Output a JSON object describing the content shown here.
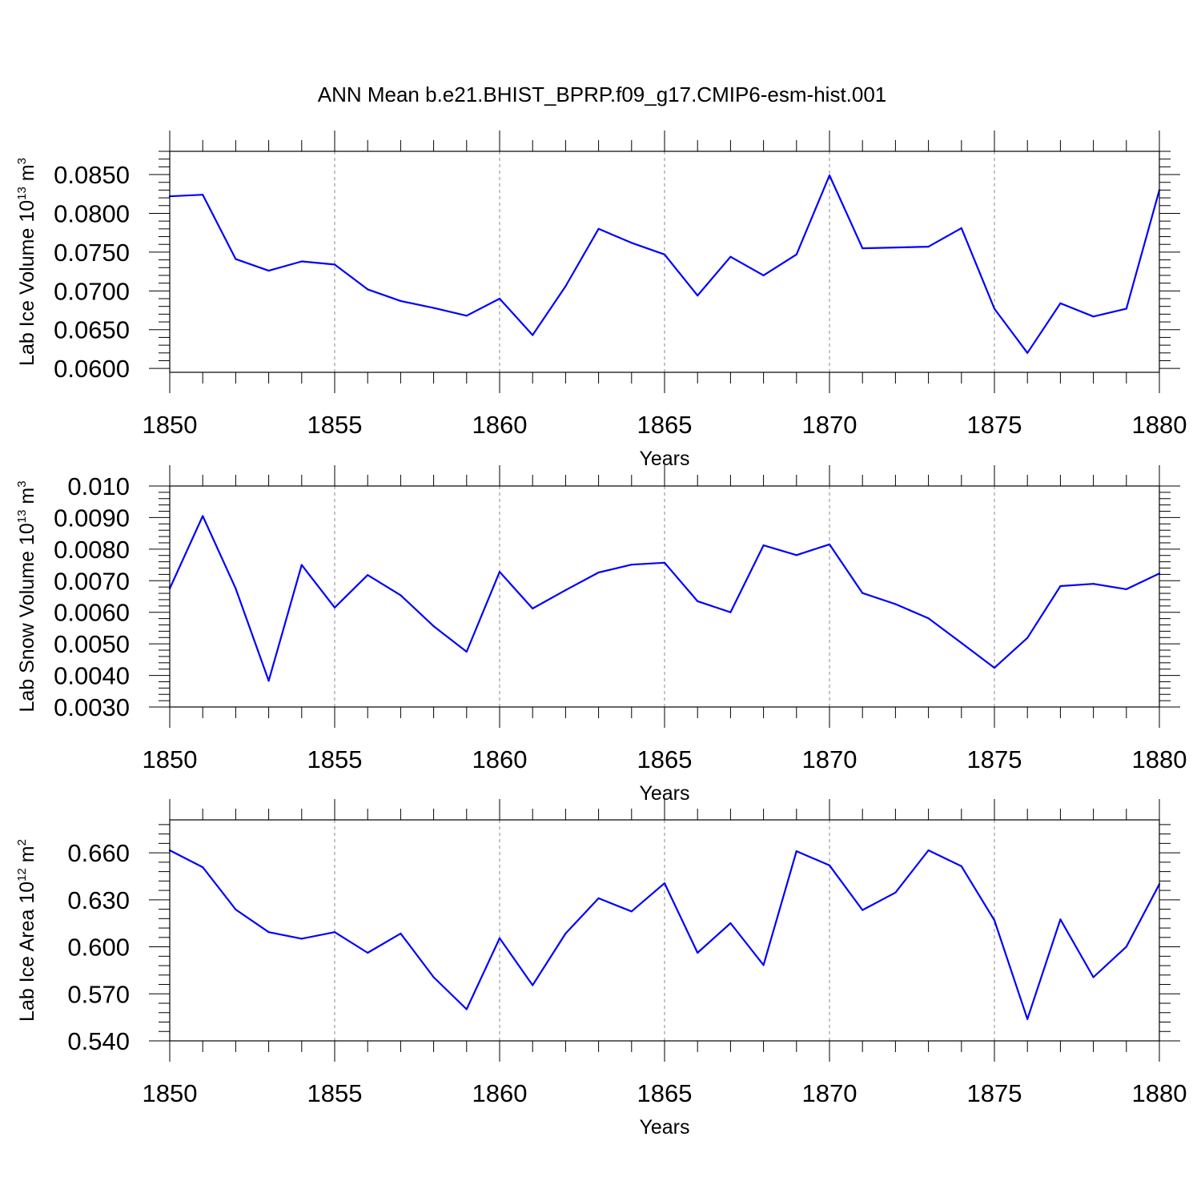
{
  "title": "ANN Mean b.e21.BHIST_BPRP.f09_g17.CMIP6-esm-hist.001",
  "chart_data": [
    {
      "type": "line",
      "ylabel": "Lab Ice Volume 10",
      "ylabel_exponent": "13",
      "ylabel_unit": " m",
      "ylabel_unit_exponent": "3",
      "xlabel": "Years",
      "xlim": [
        1850,
        1880
      ],
      "ylim": [
        0.0595,
        0.088
      ],
      "y_major_ticks": [
        0.06,
        0.065,
        0.07,
        0.075,
        0.08,
        0.085
      ],
      "y_tick_labels": [
        "0.0600",
        "0.0650",
        "0.0700",
        "0.0750",
        "0.0800",
        "0.0850"
      ],
      "x_major_ticks": [
        1850,
        1855,
        1860,
        1865,
        1870,
        1875,
        1880
      ],
      "x_tick_labels": [
        "1850",
        "1855",
        "1860",
        "1865",
        "1870",
        "1875",
        "1880"
      ],
      "grid": "dashed vertical at major x ticks",
      "line_color": "#0000ff",
      "x": [
        1850,
        1851,
        1852,
        1853,
        1854,
        1855,
        1856,
        1857,
        1858,
        1859,
        1860,
        1861,
        1862,
        1863,
        1864,
        1865,
        1866,
        1867,
        1868,
        1869,
        1870,
        1871,
        1872,
        1873,
        1874,
        1875,
        1876,
        1877,
        1878,
        1879,
        1880
      ],
      "values": [
        0.0822,
        0.0824,
        0.0741,
        0.0726,
        0.0738,
        0.0734,
        0.0702,
        0.0687,
        0.0678,
        0.0668,
        0.069,
        0.0643,
        0.0706,
        0.078,
        0.0762,
        0.0747,
        0.0694,
        0.0744,
        0.072,
        0.0747,
        0.0849,
        0.0755,
        0.0756,
        0.0757,
        0.0781,
        0.0677,
        0.062,
        0.0684,
        0.0667,
        0.0677,
        0.083
      ]
    },
    {
      "type": "line",
      "ylabel": "Lab Snow Volume 10",
      "ylabel_exponent": "13",
      "ylabel_unit": " m",
      "ylabel_unit_exponent": "3",
      "xlabel": "Years",
      "xlim": [
        1850,
        1880
      ],
      "ylim": [
        0.003,
        0.01
      ],
      "y_major_ticks": [
        0.003,
        0.004,
        0.005,
        0.006,
        0.007,
        0.008,
        0.009,
        0.01
      ],
      "y_tick_labels": [
        "0.0030",
        "0.0040",
        "0.0050",
        "0.0060",
        "0.0070",
        "0.0080",
        "0.0090",
        "0.010"
      ],
      "x_major_ticks": [
        1850,
        1855,
        1860,
        1865,
        1870,
        1875,
        1880
      ],
      "x_tick_labels": [
        "1850",
        "1855",
        "1860",
        "1865",
        "1870",
        "1875",
        "1880"
      ],
      "grid": "dashed vertical at major x ticks",
      "line_color": "#0000ff",
      "x": [
        1850,
        1851,
        1852,
        1853,
        1854,
        1855,
        1856,
        1857,
        1858,
        1859,
        1860,
        1861,
        1862,
        1863,
        1864,
        1865,
        1866,
        1867,
        1868,
        1869,
        1870,
        1871,
        1872,
        1873,
        1874,
        1875,
        1876,
        1877,
        1878,
        1879,
        1880
      ],
      "values": [
        0.00675,
        0.00905,
        0.00675,
        0.00383,
        0.0075,
        0.00615,
        0.00718,
        0.00654,
        0.00556,
        0.00475,
        0.00728,
        0.00612,
        0.0067,
        0.00726,
        0.00751,
        0.00757,
        0.00635,
        0.006,
        0.00812,
        0.00781,
        0.00815,
        0.00661,
        0.00626,
        0.00581,
        0.00503,
        0.00424,
        0.00519,
        0.00683,
        0.0069,
        0.00673,
        0.00723
      ]
    },
    {
      "type": "line",
      "ylabel": "Lab Ice Area 10",
      "ylabel_exponent": "12",
      "ylabel_unit": " m",
      "ylabel_unit_exponent": "2",
      "xlabel": "Years",
      "xlim": [
        1850,
        1880
      ],
      "ylim": [
        0.54,
        0.681
      ],
      "y_major_ticks": [
        0.54,
        0.57,
        0.6,
        0.63,
        0.66
      ],
      "y_tick_labels": [
        "0.540",
        "0.570",
        "0.600",
        "0.630",
        "0.660"
      ],
      "x_major_ticks": [
        1850,
        1855,
        1860,
        1865,
        1870,
        1875,
        1880
      ],
      "x_tick_labels": [
        "1850",
        "1855",
        "1860",
        "1865",
        "1870",
        "1875",
        "1880"
      ],
      "grid": "dashed vertical at major x ticks",
      "line_color": "#0000ff",
      "x": [
        1850,
        1851,
        1852,
        1853,
        1854,
        1855,
        1856,
        1857,
        1858,
        1859,
        1860,
        1861,
        1862,
        1863,
        1864,
        1865,
        1866,
        1867,
        1868,
        1869,
        1870,
        1871,
        1872,
        1873,
        1874,
        1875,
        1876,
        1877,
        1878,
        1879,
        1880
      ],
      "values": [
        0.6616,
        0.6508,
        0.6238,
        0.6094,
        0.6052,
        0.6094,
        0.5962,
        0.6085,
        0.5806,
        0.5602,
        0.6055,
        0.5755,
        0.6085,
        0.631,
        0.6226,
        0.6406,
        0.5962,
        0.6151,
        0.5884,
        0.661,
        0.652,
        0.6235,
        0.6346,
        0.6616,
        0.6514,
        0.6169,
        0.5539,
        0.6175,
        0.5806,
        0.6001,
        0.64
      ]
    }
  ]
}
